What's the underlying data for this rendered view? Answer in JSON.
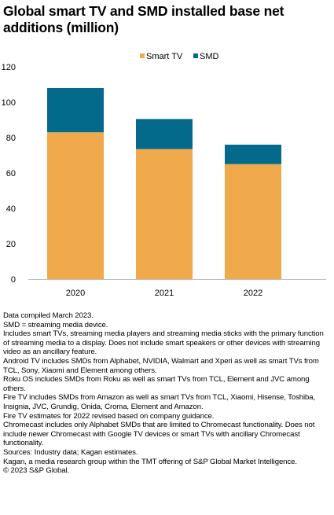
{
  "title": "Global smart TV and SMD installed base net additions (million)",
  "colors": {
    "smart_tv": "#F0A94B",
    "smd": "#046A8C",
    "axis": "#bfbfbf"
  },
  "chart_data": {
    "type": "bar",
    "stacked": true,
    "categories": [
      "2020",
      "2021",
      "2022"
    ],
    "series": [
      {
        "name": "Smart TV",
        "values": [
          83,
          73.5,
          65
        ],
        "color": "#F0A94B"
      },
      {
        "name": "SMD",
        "values": [
          25,
          17,
          11
        ],
        "color": "#046A8C"
      }
    ],
    "ylim": [
      0,
      120
    ],
    "yticks": [
      "0",
      "20",
      "40",
      "60",
      "80",
      "100",
      "120"
    ],
    "legend": "top-center",
    "grid": false
  },
  "notes": [
    "Data compiled March 2023.",
    "SMD = streaming media device.",
    "Includes smart TVs, streaming media players and streaming media sticks with the primary function of streaming media to a display. Does not include smart speakers or other devices with streaming video as an ancillary feature.",
    "Android TV includes SMDs from Alphabet, NVIDIA, Walmart and Xperi as well as smart TVs from TCL, Sony, Xiaomi and Element among others.",
    "Roku OS includes SMDs from Roku as well as smart TVs from TCL, Element and JVC among others.",
    "Fire TV includes SMDs from Amazon as well as smart TVs from TCL, Xiaomi, Hisense, Toshiba, Insignia, JVC, Grundig, Onida, Croma, Element and Amazon.",
    "Fire TV estimates for 2022 revised based on company guidance.",
    "Chromecast includes only Alphabet SMDs that are limited to Chromecast functionality. Does not include newer Chromecast with Google TV devices or smart TVs with ancillary Chromecast functionality.",
    "Sources: Industry data; Kagan estimates.",
    "Kagan, a media research group within the TMT offering of S&P Global Market Intelligence.",
    "© 2023 S&P Global."
  ]
}
